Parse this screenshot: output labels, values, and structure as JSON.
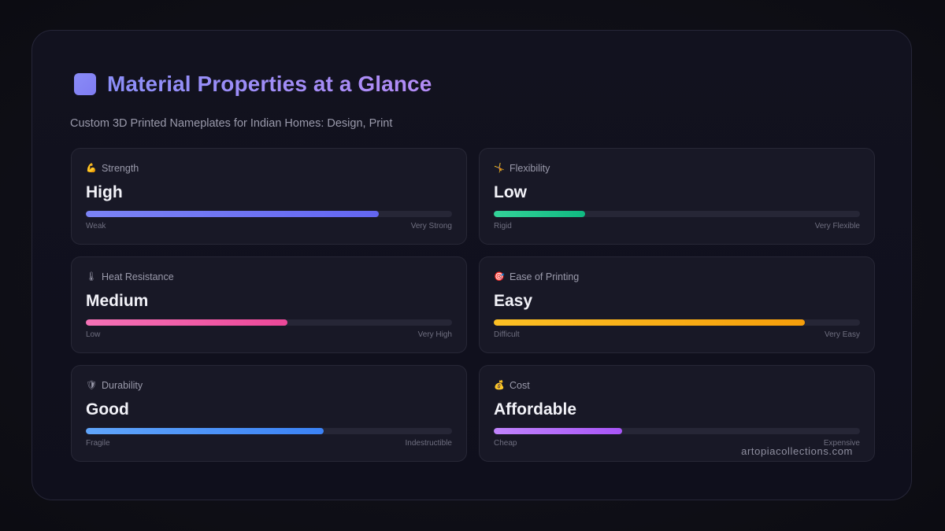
{
  "header": {
    "title": "Material Properties at a Glance",
    "title_icon": "square-icon",
    "subtitle": "Custom 3D Printed Nameplates for Indian Homes: Design, Print"
  },
  "properties": [
    {
      "key": "strength",
      "icon": "flexed-biceps-icon",
      "icon_glyph": "💪",
      "label": "Strength",
      "value": "High",
      "level": 0.8,
      "min_label": "Weak",
      "max_label": "Very Strong",
      "color_start": "#7b83f5",
      "color_end": "#6366f1"
    },
    {
      "key": "flexibility",
      "icon": "person-doing-cartwheel-icon",
      "icon_glyph": "🤸",
      "label": "Flexibility",
      "value": "Low",
      "level": 0.25,
      "min_label": "Rigid",
      "max_label": "Very Flexible",
      "color_start": "#34d399",
      "color_end": "#10b981"
    },
    {
      "key": "heat_resistance",
      "icon": "thermometer-icon",
      "icon_glyph": "🌡",
      "label": "Heat Resistance",
      "value": "Medium",
      "level": 0.55,
      "min_label": "Low",
      "max_label": "Very High",
      "color_start": "#f472b6",
      "color_end": "#ec4899"
    },
    {
      "key": "ease_of_printing",
      "icon": "direct-hit-icon",
      "icon_glyph": "🎯",
      "label": "Ease of Printing",
      "value": "Easy",
      "level": 0.85,
      "min_label": "Difficult",
      "max_label": "Very Easy",
      "color_start": "#fbbf24",
      "color_end": "#f59e0b"
    },
    {
      "key": "durability",
      "icon": "shield-icon",
      "icon_glyph": "🛡",
      "label": "Durability",
      "value": "Good",
      "level": 0.65,
      "min_label": "Fragile",
      "max_label": "Indestructible",
      "color_start": "#60a5fa",
      "color_end": "#3b82f6"
    },
    {
      "key": "cost",
      "icon": "money-bag-icon",
      "icon_glyph": "💰",
      "label": "Cost",
      "value": "Affordable",
      "level": 0.35,
      "min_label": "Cheap",
      "max_label": "Expensive",
      "color_start": "#c084fc",
      "color_end": "#a855f7"
    }
  ],
  "footer": {
    "brand": "artopiacollections.com"
  }
}
